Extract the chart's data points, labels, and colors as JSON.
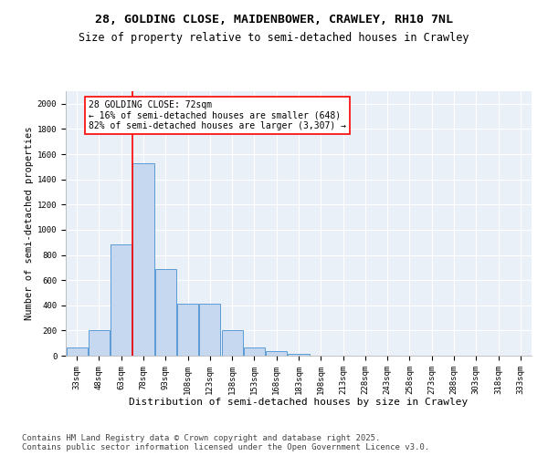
{
  "title_line1": "28, GOLDING CLOSE, MAIDENBOWER, CRAWLEY, RH10 7NL",
  "title_line2": "Size of property relative to semi-detached houses in Crawley",
  "xlabel": "Distribution of semi-detached houses by size in Crawley",
  "ylabel": "Number of semi-detached properties",
  "categories": [
    "33sqm",
    "48sqm",
    "63sqm",
    "78sqm",
    "93sqm",
    "108sqm",
    "123sqm",
    "138sqm",
    "153sqm",
    "168sqm",
    "183sqm",
    "198sqm",
    "213sqm",
    "228sqm",
    "243sqm",
    "258sqm",
    "273sqm",
    "288sqm",
    "303sqm",
    "318sqm",
    "333sqm"
  ],
  "values": [
    65,
    200,
    880,
    1530,
    685,
    415,
    415,
    200,
    62,
    35,
    15,
    0,
    0,
    0,
    0,
    0,
    0,
    0,
    0,
    0,
    0
  ],
  "bar_color": "#c5d8f0",
  "bar_edge_color": "#5b9bd5",
  "vline_position": 2.5,
  "vline_color": "red",
  "annotation_text": "28 GOLDING CLOSE: 72sqm\n← 16% of semi-detached houses are smaller (648)\n82% of semi-detached houses are larger (3,307) →",
  "annotation_box_color": "white",
  "annotation_box_edge_color": "red",
  "ylim": [
    0,
    2100
  ],
  "yticks": [
    0,
    200,
    400,
    600,
    800,
    1000,
    1200,
    1400,
    1600,
    1800,
    2000
  ],
  "background_color": "#eaf0f8",
  "grid_color": "white",
  "footer": "Contains HM Land Registry data © Crown copyright and database right 2025.\nContains public sector information licensed under the Open Government Licence v3.0.",
  "title_fontsize": 9.5,
  "subtitle_fontsize": 8.5,
  "xlabel_fontsize": 8,
  "ylabel_fontsize": 7.5,
  "tick_fontsize": 6.5,
  "annotation_fontsize": 7,
  "footer_fontsize": 6.5
}
